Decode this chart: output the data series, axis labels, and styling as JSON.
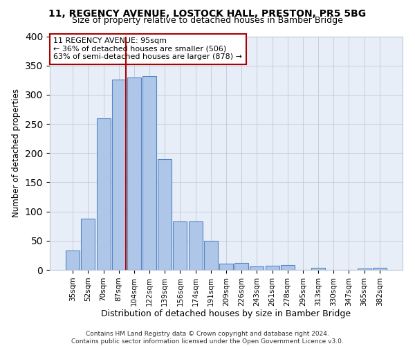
{
  "title": "11, REGENCY AVENUE, LOSTOCK HALL, PRESTON, PR5 5BG",
  "subtitle": "Size of property relative to detached houses in Bamber Bridge",
  "xlabel": "Distribution of detached houses by size in Bamber Bridge",
  "ylabel": "Number of detached properties",
  "footer_line1": "Contains HM Land Registry data © Crown copyright and database right 2024.",
  "footer_line2": "Contains public sector information licensed under the Open Government Licence v3.0.",
  "bar_labels": [
    "35sqm",
    "52sqm",
    "70sqm",
    "87sqm",
    "104sqm",
    "122sqm",
    "139sqm",
    "156sqm",
    "174sqm",
    "191sqm",
    "209sqm",
    "226sqm",
    "243sqm",
    "261sqm",
    "278sqm",
    "295sqm",
    "313sqm",
    "330sqm",
    "347sqm",
    "365sqm",
    "382sqm"
  ],
  "bar_values": [
    33,
    88,
    260,
    326,
    330,
    332,
    190,
    83,
    83,
    50,
    11,
    12,
    6,
    7,
    8,
    0,
    4,
    0,
    0,
    2,
    4
  ],
  "bar_color": "#aec6e8",
  "bar_edge_color": "#5585c5",
  "background_color": "#e8eef7",
  "vline_x_index": 3,
  "vline_color": "#aa0000",
  "annotation_text": "11 REGENCY AVENUE: 95sqm\n← 36% of detached houses are smaller (506)\n63% of semi-detached houses are larger (878) →",
  "annotation_box_color": "#ffffff",
  "annotation_box_edge": "#aa0000",
  "ylim": [
    0,
    400
  ],
  "yticks": [
    0,
    50,
    100,
    150,
    200,
    250,
    300,
    350,
    400
  ]
}
